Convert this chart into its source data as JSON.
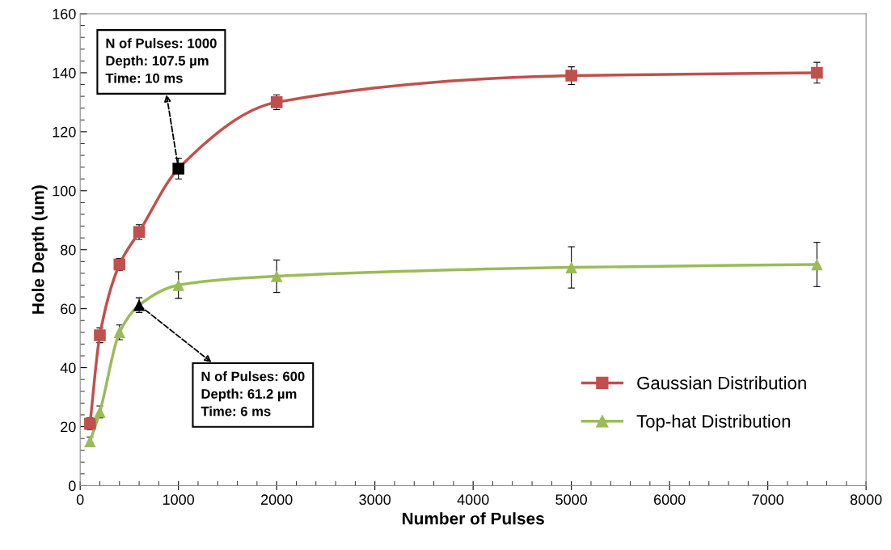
{
  "chart_data": {
    "type": "line",
    "xlabel": "Number of Pulses",
    "ylabel": "Hole Depth (um)",
    "x": [
      100,
      200,
      400,
      600,
      1000,
      2000,
      5000,
      7500
    ],
    "series": [
      {
        "name": "Gaussian Distribution",
        "color": "#c0504d",
        "marker": "square",
        "colors": [
          "#c0504d",
          "#c0504d",
          "#c0504d",
          "#c0504d",
          "#000000",
          "#c0504d",
          "#c0504d",
          "#c0504d"
        ],
        "values": [
          21,
          51,
          75,
          86,
          107.5,
          130,
          139,
          140
        ],
        "errors": [
          2,
          2.5,
          2,
          2.5,
          3.5,
          2.5,
          3,
          3.5
        ]
      },
      {
        "name": "Top-hat Distribution",
        "color": "#9bbb59",
        "marker": "triangle",
        "colors": [
          "#9bbb59",
          "#9bbb59",
          "#9bbb59",
          "#000000",
          "#9bbb59",
          "#9bbb59",
          "#9bbb59",
          "#9bbb59"
        ],
        "values": [
          15,
          25,
          52,
          61.2,
          68,
          71,
          74,
          75
        ],
        "errors": [
          1.5,
          2,
          2.5,
          2.5,
          4.5,
          5.5,
          7,
          7.5
        ]
      }
    ],
    "annotations": [
      {
        "text": "N of Pulses: 1000\nDepth: 107.5 µm\nTime: 10 ms",
        "x": 1000,
        "y": 107.5
      },
      {
        "text": "N of Pulses: 600\nDepth: 61.2 µm\nTime: 6 ms",
        "x": 600,
        "y": 61.2
      }
    ],
    "xlim": [
      0,
      8000
    ],
    "xticks": [
      0,
      1000,
      2000,
      3000,
      4000,
      5000,
      6000,
      7000,
      8000
    ],
    "ylim": [
      0,
      160
    ],
    "yticks": [
      0,
      20,
      40,
      60,
      80,
      100,
      120,
      140,
      160
    ],
    "grid": false,
    "legend": "bottom right",
    "line_style": "solid"
  }
}
